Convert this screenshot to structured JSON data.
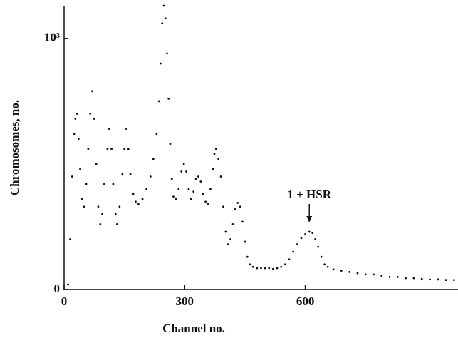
{
  "chart_data": {
    "type": "scatter",
    "x_label": "Channel no.",
    "y_label": "Chromosomes, no.",
    "annotation": "1 + HSR",
    "annotation_x": 610,
    "xlim": [
      0,
      980
    ],
    "ylim": [
      0,
      1130
    ],
    "xticks": [
      0,
      300,
      600
    ],
    "yticks": [
      0,
      {
        "value": 1000,
        "label": "10³"
      }
    ],
    "color": "#111111",
    "x": [
      10,
      15,
      20,
      25,
      28,
      32,
      36,
      40,
      45,
      50,
      55,
      60,
      65,
      70,
      75,
      80,
      85,
      90,
      95,
      100,
      108,
      112,
      118,
      122,
      128,
      132,
      138,
      145,
      150,
      155,
      160,
      165,
      172,
      178,
      185,
      195,
      205,
      215,
      222,
      230,
      236,
      240,
      244,
      248,
      252,
      256,
      260,
      264,
      268,
      272,
      278,
      285,
      292,
      298,
      304,
      310,
      316,
      322,
      328,
      334,
      340,
      346,
      352,
      358,
      364,
      370,
      374,
      378,
      384,
      390,
      396,
      402,
      408,
      414,
      420,
      426,
      432,
      438,
      444,
      450,
      456,
      462,
      470,
      480,
      490,
      500,
      510,
      520,
      530,
      540,
      550,
      560,
      570,
      580,
      590,
      600,
      610,
      618,
      625,
      632,
      640,
      648,
      656,
      670,
      690,
      710,
      730,
      750,
      770,
      790,
      810,
      830,
      850,
      870,
      890,
      910,
      930,
      950,
      970
    ],
    "y": [
      20,
      200,
      450,
      620,
      680,
      700,
      600,
      480,
      360,
      330,
      420,
      560,
      700,
      790,
      680,
      500,
      330,
      260,
      300,
      420,
      560,
      640,
      560,
      420,
      300,
      260,
      330,
      460,
      560,
      640,
      560,
      460,
      380,
      350,
      340,
      360,
      400,
      450,
      520,
      620,
      750,
      900,
      1060,
      1130,
      1080,
      940,
      760,
      580,
      440,
      370,
      360,
      400,
      470,
      500,
      470,
      400,
      360,
      390,
      440,
      450,
      430,
      380,
      350,
      340,
      400,
      480,
      540,
      560,
      520,
      450,
      330,
      230,
      180,
      200,
      260,
      320,
      345,
      330,
      270,
      190,
      130,
      100,
      90,
      85,
      85,
      85,
      85,
      82,
      85,
      90,
      100,
      120,
      150,
      180,
      205,
      220,
      230,
      225,
      200,
      170,
      130,
      100,
      90,
      80,
      75,
      70,
      65,
      60,
      60,
      55,
      50,
      50,
      45,
      45,
      42,
      40,
      40,
      38,
      38
    ]
  }
}
